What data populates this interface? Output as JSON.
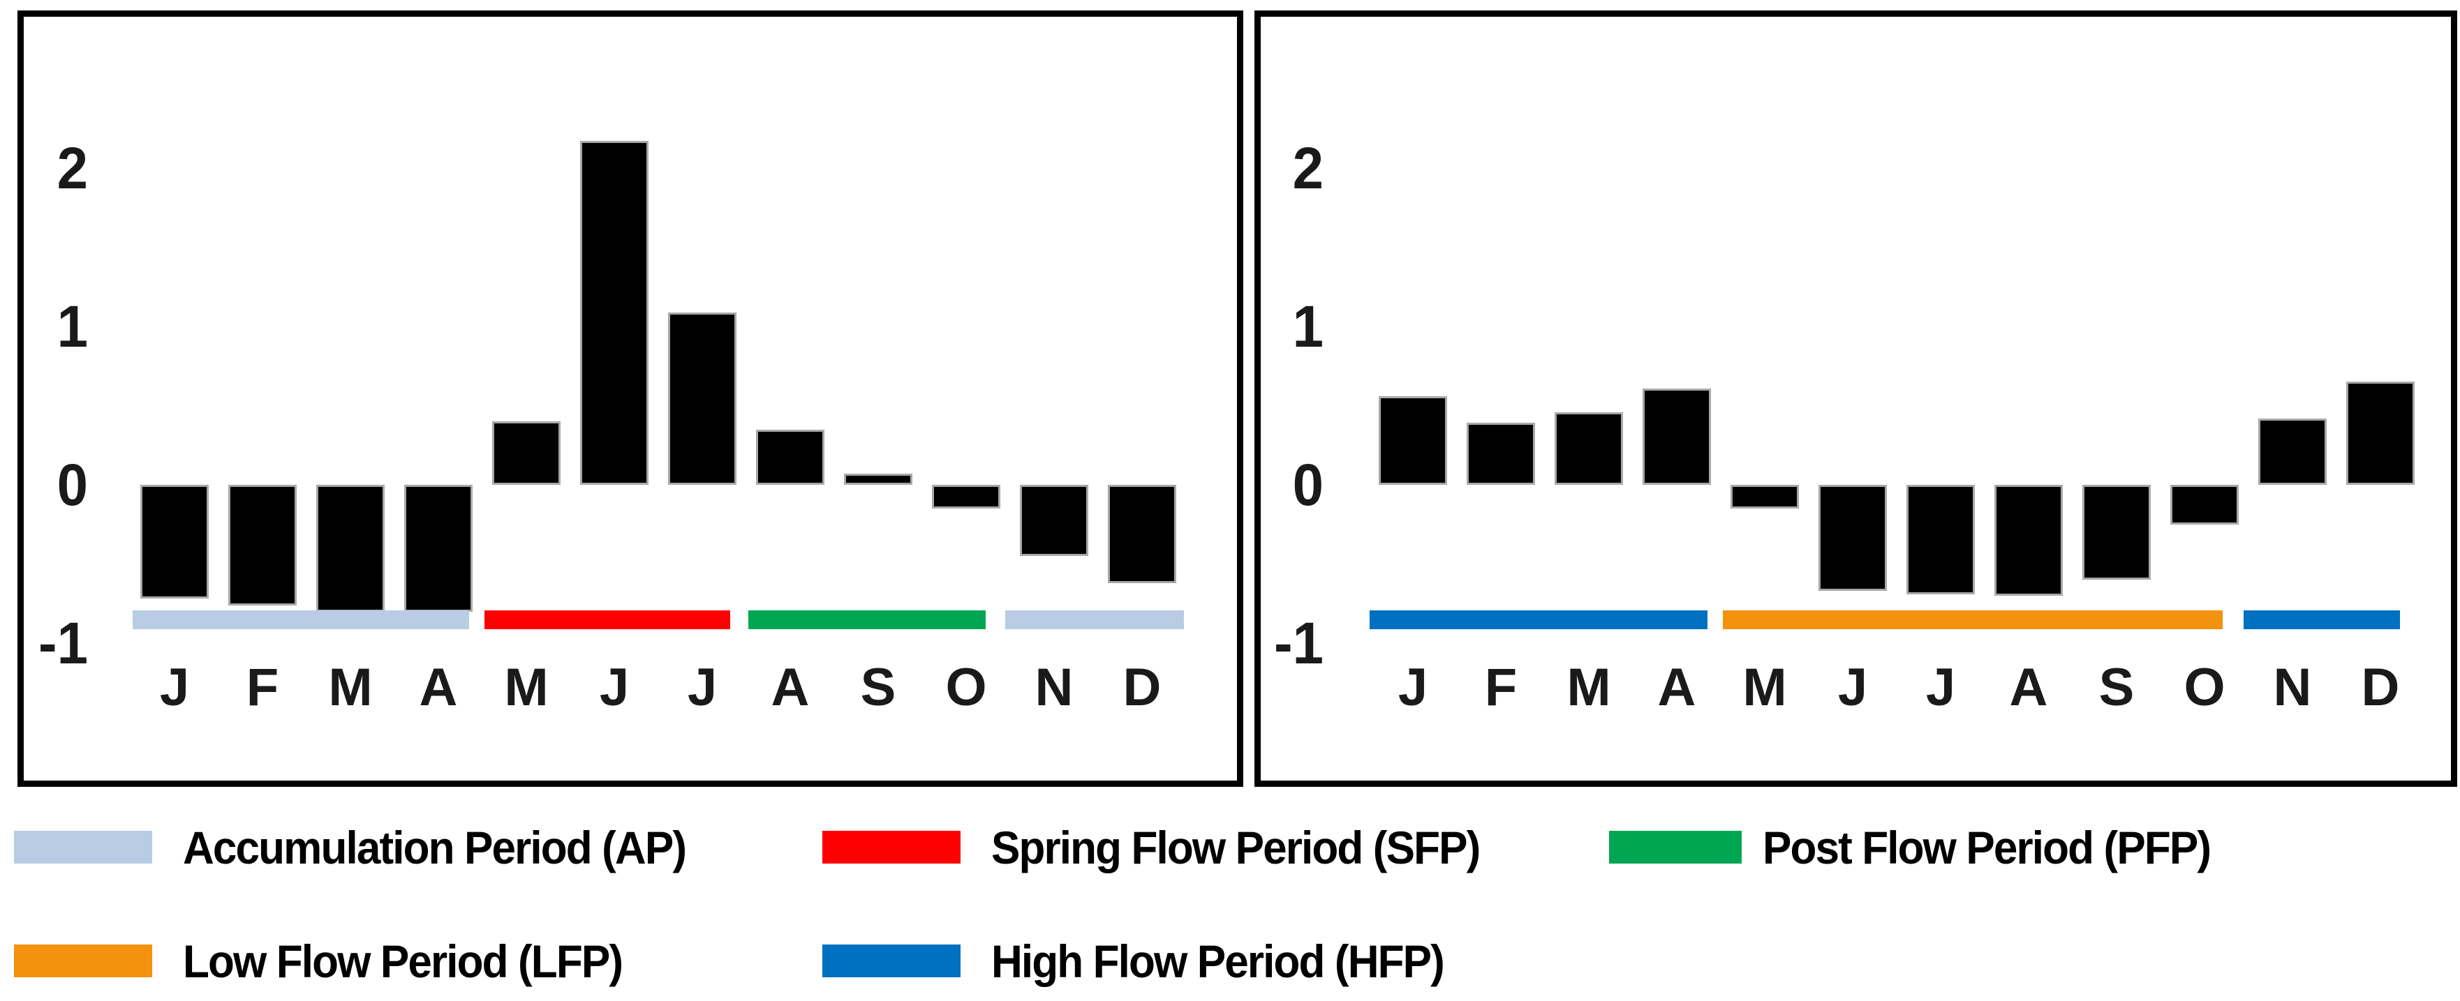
{
  "figure": {
    "description": "Two monthly standardized-anomaly bar charts with flow-period bands",
    "y_axis_ticks": [
      "2",
      "1",
      "0",
      "-1"
    ]
  },
  "chart_data": [
    {
      "type": "bar",
      "title": "",
      "xlabel": "",
      "ylabel": "",
      "categories": [
        "J",
        "F",
        "M",
        "A",
        "M",
        "J",
        "J",
        "A",
        "S",
        "O",
        "N",
        "D"
      ],
      "values": [
        -0.72,
        -0.76,
        -0.8,
        -0.8,
        0.4,
        2.17,
        1.09,
        0.35,
        0.07,
        -0.15,
        -0.45,
        -0.62
      ],
      "yticks": [
        2,
        1,
        0,
        -1
      ],
      "ylim": [
        -1,
        2.4
      ],
      "grid": false,
      "bar_color": "#000000",
      "periods": [
        {
          "name": "Accumulation Period (AP)",
          "months": [
            "J",
            "F",
            "M",
            "A"
          ],
          "color": "#b8cce4"
        },
        {
          "name": "Spring Flow Period (SFP)",
          "months": [
            "M",
            "J",
            "J"
          ],
          "color": "#ff0000"
        },
        {
          "name": "Post Flow Period (PFP)",
          "months": [
            "A",
            "S",
            "O"
          ],
          "color": "#00a651"
        },
        {
          "name": "Accumulation Period (AP)",
          "months": [
            "N",
            "D"
          ],
          "color": "#b8cce4"
        }
      ]
    },
    {
      "type": "bar",
      "title": "",
      "xlabel": "",
      "ylabel": "",
      "categories": [
        "J",
        "F",
        "M",
        "A",
        "M",
        "J",
        "J",
        "A",
        "S",
        "O",
        "N",
        "D"
      ],
      "values": [
        0.56,
        0.39,
        0.46,
        0.61,
        -0.15,
        -0.67,
        -0.69,
        -0.7,
        -0.6,
        -0.25,
        0.42,
        0.65
      ],
      "yticks": [
        2,
        1,
        0,
        -1
      ],
      "ylim": [
        -1,
        2.4
      ],
      "grid": false,
      "bar_color": "#000000",
      "periods": [
        {
          "name": "High Flow Period (HFP)",
          "months": [
            "J",
            "F",
            "M",
            "A"
          ],
          "color": "#0070c0"
        },
        {
          "name": "Low Flow Period (LFP)",
          "months": [
            "M",
            "J",
            "J",
            "A",
            "S",
            "O"
          ],
          "color": "#f2920d"
        },
        {
          "name": "High Flow Period (HFP)",
          "months": [
            "N",
            "D"
          ],
          "color": "#0070c0"
        }
      ]
    }
  ],
  "legend": {
    "rows": [
      {
        "items": [
          {
            "label": "Accumulation Period (AP)",
            "color": "#b8cce4"
          },
          {
            "label": "Spring Flow Period (SFP)",
            "color": "#ff0000"
          },
          {
            "label": "Post Flow Period (PFP)",
            "color": "#00a651"
          }
        ]
      },
      {
        "items": [
          {
            "label": "Low Flow Period (LFP)",
            "color": "#f2920d"
          },
          {
            "label": "High Flow Period (HFP)",
            "color": "#0070c0"
          }
        ]
      }
    ]
  },
  "colors": {
    "bar": "#000000",
    "accumulation_period": "#b8cce4",
    "spring_flow_period": "#ff0000",
    "post_flow_period": "#00a651",
    "low_flow_period": "#f2920d",
    "high_flow_period": "#0070c0"
  }
}
